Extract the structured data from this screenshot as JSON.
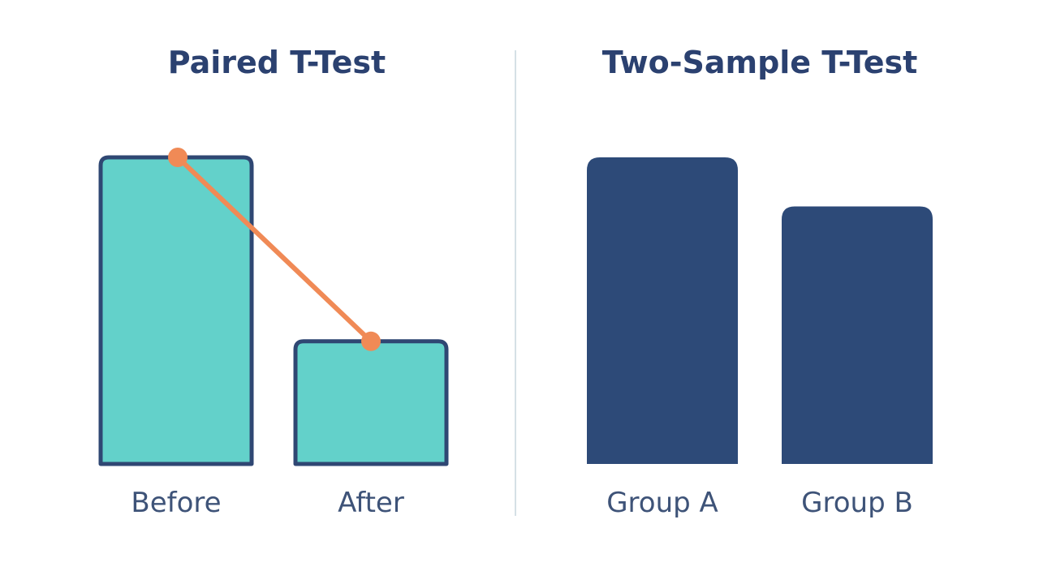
{
  "colors": {
    "paired_fill": "#63d1ca",
    "paired_stroke": "#2f4773",
    "line": "#f08a56",
    "group_fill": "#2d4a78",
    "title": "#2b4170",
    "label": "#3e5378",
    "divider": "#d5e0e6"
  },
  "chart_data": [
    {
      "type": "bar",
      "title": "Paired T-Test",
      "categories": [
        "Before",
        "After"
      ],
      "values": [
        100,
        40
      ],
      "ylim": [
        0,
        100
      ],
      "connector": "line linking the top of each bar",
      "grid": false
    },
    {
      "type": "bar",
      "title": "Two-Sample T-Test",
      "categories": [
        "Group A",
        "Group B"
      ],
      "values": [
        100,
        84
      ],
      "ylim": [
        0,
        100
      ],
      "grid": false
    }
  ]
}
